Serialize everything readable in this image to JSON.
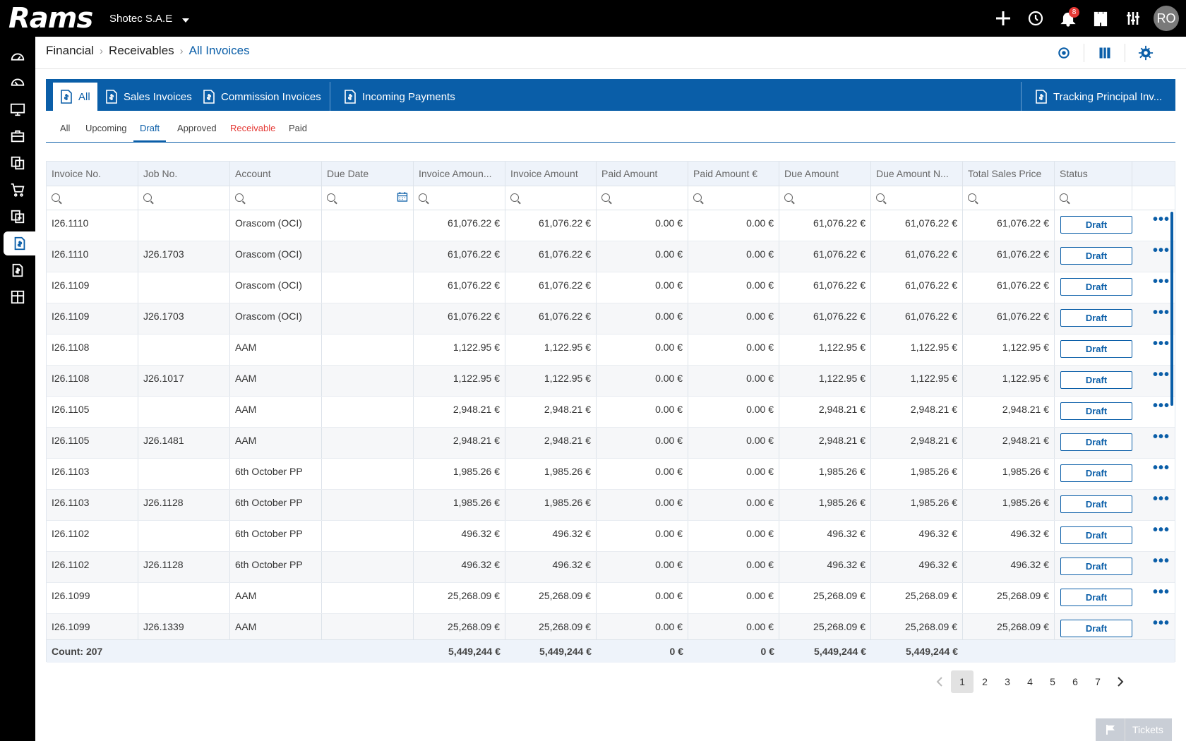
{
  "app": {
    "logo_text": "Rams",
    "company": "Shotec S.A.E",
    "notifications_count": "8",
    "user_initials": "RO"
  },
  "topbar_icons": [
    "plus-icon",
    "history-icon",
    "bell-icon",
    "castle-icon",
    "sliders-icon"
  ],
  "sidebar_icons": [
    "dashboard-icon",
    "dashboard-alt-icon",
    "monitor-icon",
    "briefcase-icon",
    "documents-icon",
    "cart-icon",
    "reports-icon",
    "invoice-icon",
    "invoice-alt-icon",
    "grid-icon"
  ],
  "breadcrumb": {
    "level1": "Financial",
    "level2": "Receivables",
    "current": "All Invoices"
  },
  "tabs": [
    {
      "label": "All"
    },
    {
      "label": "Sales Invoices"
    },
    {
      "label": "Commission Invoices"
    },
    {
      "label": "Incoming Payments"
    },
    {
      "label": "Tracking Principal Inv..."
    }
  ],
  "subtabs": [
    {
      "label": "All"
    },
    {
      "label": "Upcoming"
    },
    {
      "label": "Draft"
    },
    {
      "label": "Approved"
    },
    {
      "label": "Receivable"
    },
    {
      "label": "Paid"
    }
  ],
  "columns": [
    "Invoice No.",
    "Job No.",
    "Account",
    "Due Date",
    "Invoice Amoun...",
    "Invoice Amount",
    "Paid Amount",
    "Paid Amount €",
    "Due Amount",
    "Due Amount N...",
    "Total Sales Price",
    "Status"
  ],
  "rows": [
    {
      "inv": "I26.1110",
      "job": "",
      "acc": "Orascom (OCI)",
      "due": "",
      "ia1": "61,076.22 €",
      "ia2": "61,076.22 €",
      "pa": "0.00 €",
      "pae": "0.00 €",
      "da": "61,076.22 €",
      "dan": "61,076.22 €",
      "tsp": "61,076.22 €",
      "status": "Draft"
    },
    {
      "inv": "I26.1110",
      "job": "J26.1703",
      "acc": "Orascom (OCI)",
      "due": "",
      "ia1": "61,076.22 €",
      "ia2": "61,076.22 €",
      "pa": "0.00 €",
      "pae": "0.00 €",
      "da": "61,076.22 €",
      "dan": "61,076.22 €",
      "tsp": "61,076.22 €",
      "status": "Draft"
    },
    {
      "inv": "I26.1109",
      "job": "",
      "acc": "Orascom (OCI)",
      "due": "",
      "ia1": "61,076.22 €",
      "ia2": "61,076.22 €",
      "pa": "0.00 €",
      "pae": "0.00 €",
      "da": "61,076.22 €",
      "dan": "61,076.22 €",
      "tsp": "61,076.22 €",
      "status": "Draft"
    },
    {
      "inv": "I26.1109",
      "job": "J26.1703",
      "acc": "Orascom (OCI)",
      "due": "",
      "ia1": "61,076.22 €",
      "ia2": "61,076.22 €",
      "pa": "0.00 €",
      "pae": "0.00 €",
      "da": "61,076.22 €",
      "dan": "61,076.22 €",
      "tsp": "61,076.22 €",
      "status": "Draft"
    },
    {
      "inv": "I26.1108",
      "job": "",
      "acc": "AAM",
      "due": "",
      "ia1": "1,122.95 €",
      "ia2": "1,122.95 €",
      "pa": "0.00 €",
      "pae": "0.00 €",
      "da": "1,122.95 €",
      "dan": "1,122.95 €",
      "tsp": "1,122.95 €",
      "status": "Draft"
    },
    {
      "inv": "I26.1108",
      "job": "J26.1017",
      "acc": "AAM",
      "due": "",
      "ia1": "1,122.95 €",
      "ia2": "1,122.95 €",
      "pa": "0.00 €",
      "pae": "0.00 €",
      "da": "1,122.95 €",
      "dan": "1,122.95 €",
      "tsp": "1,122.95 €",
      "status": "Draft"
    },
    {
      "inv": "I26.1105",
      "job": "",
      "acc": "AAM",
      "due": "",
      "ia1": "2,948.21 €",
      "ia2": "2,948.21 €",
      "pa": "0.00 €",
      "pae": "0.00 €",
      "da": "2,948.21 €",
      "dan": "2,948.21 €",
      "tsp": "2,948.21 €",
      "status": "Draft"
    },
    {
      "inv": "I26.1105",
      "job": "J26.1481",
      "acc": "AAM",
      "due": "",
      "ia1": "2,948.21 €",
      "ia2": "2,948.21 €",
      "pa": "0.00 €",
      "pae": "0.00 €",
      "da": "2,948.21 €",
      "dan": "2,948.21 €",
      "tsp": "2,948.21 €",
      "status": "Draft"
    },
    {
      "inv": "I26.1103",
      "job": "",
      "acc": "6th October PP",
      "due": "",
      "ia1": "1,985.26 €",
      "ia2": "1,985.26 €",
      "pa": "0.00 €",
      "pae": "0.00 €",
      "da": "1,985.26 €",
      "dan": "1,985.26 €",
      "tsp": "1,985.26 €",
      "status": "Draft"
    },
    {
      "inv": "I26.1103",
      "job": "J26.1128",
      "acc": "6th October PP",
      "due": "",
      "ia1": "1,985.26 €",
      "ia2": "1,985.26 €",
      "pa": "0.00 €",
      "pae": "0.00 €",
      "da": "1,985.26 €",
      "dan": "1,985.26 €",
      "tsp": "1,985.26 €",
      "status": "Draft"
    },
    {
      "inv": "I26.1102",
      "job": "",
      "acc": "6th October PP",
      "due": "",
      "ia1": "496.32 €",
      "ia2": "496.32 €",
      "pa": "0.00 €",
      "pae": "0.00 €",
      "da": "496.32 €",
      "dan": "496.32 €",
      "tsp": "496.32 €",
      "status": "Draft"
    },
    {
      "inv": "I26.1102",
      "job": "J26.1128",
      "acc": "6th October PP",
      "due": "",
      "ia1": "496.32 €",
      "ia2": "496.32 €",
      "pa": "0.00 €",
      "pae": "0.00 €",
      "da": "496.32 €",
      "dan": "496.32 €",
      "tsp": "496.32 €",
      "status": "Draft"
    },
    {
      "inv": "I26.1099",
      "job": "",
      "acc": "AAM",
      "due": "",
      "ia1": "25,268.09 €",
      "ia2": "25,268.09 €",
      "pa": "0.00 €",
      "pae": "0.00 €",
      "da": "25,268.09 €",
      "dan": "25,268.09 €",
      "tsp": "25,268.09 €",
      "status": "Draft"
    },
    {
      "inv": "I26.1099",
      "job": "J26.1339",
      "acc": "AAM",
      "due": "",
      "ia1": "25,268.09 €",
      "ia2": "25,268.09 €",
      "pa": "0.00 €",
      "pae": "0.00 €",
      "da": "25,268.09 €",
      "dan": "25,268.09 €",
      "tsp": "25,268.09 €",
      "status": "Draft"
    }
  ],
  "footer": {
    "count": "Count: 207",
    "ia1": "5,449,244 €",
    "ia2": "5,449,244 €",
    "pa": "0 €",
    "pae": "0 €",
    "da": "5,449,244 €",
    "dan": "5,449,244 €"
  },
  "pagination": {
    "pages": [
      "1",
      "2",
      "3",
      "4",
      "5",
      "6",
      "7"
    ],
    "current": "1"
  },
  "tickets_label": "Tickets",
  "colors": {
    "accent": "#0a5ea8",
    "topbar": "#000000",
    "receivable_tab": "#e53935"
  }
}
